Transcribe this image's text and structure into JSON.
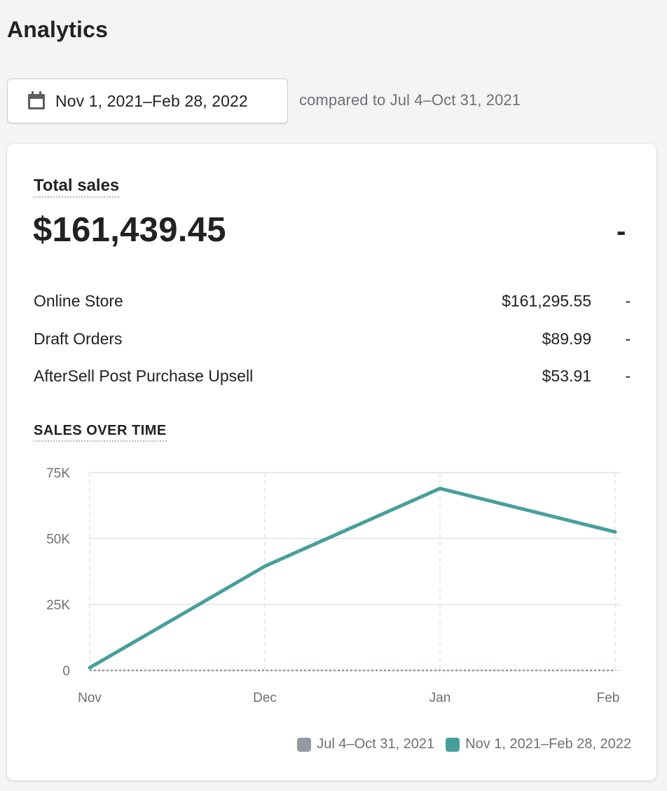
{
  "header": {
    "title": "Analytics"
  },
  "date_picker": {
    "range_label": "Nov 1, 2021–Feb 28, 2022",
    "icon": "calendar-icon",
    "comparison_text": "compared to Jul 4–Oct 31, 2021"
  },
  "total_sales": {
    "title": "Total sales",
    "value": "$161,439.45",
    "change": "-",
    "breakdown": [
      {
        "name": "Online Store",
        "amount": "$161,295.55",
        "change": "-"
      },
      {
        "name": "Draft Orders",
        "amount": "$89.99",
        "change": "-"
      },
      {
        "name": "AfterSell Post Purchase Upsell",
        "amount": "$53.91",
        "change": "-"
      }
    ]
  },
  "chart_section": {
    "title": "SALES OVER TIME"
  },
  "colors": {
    "current": "#479f9c",
    "previous": "#939aa3",
    "grid": "#e1e3e5",
    "axis_text": "#6d7175"
  },
  "chart_data": {
    "type": "line",
    "categories": [
      "Nov",
      "Dec",
      "Jan",
      "Feb"
    ],
    "ylim": [
      0,
      75000
    ],
    "y_ticks": [
      0,
      25000,
      50000,
      75000
    ],
    "y_tick_labels": [
      "0",
      "25K",
      "50K",
      "75K"
    ],
    "grid": true,
    "legend_position": "bottom-right",
    "series": [
      {
        "name": "Jul 4–Oct 31, 2021",
        "color": "#939aa3",
        "style": "dotted",
        "values": [
          0,
          0,
          0,
          0
        ]
      },
      {
        "name": "Nov 1, 2021–Feb 28, 2022",
        "color": "#479f9c",
        "style": "solid",
        "values": [
          1000,
          39500,
          69000,
          52500
        ]
      }
    ]
  }
}
